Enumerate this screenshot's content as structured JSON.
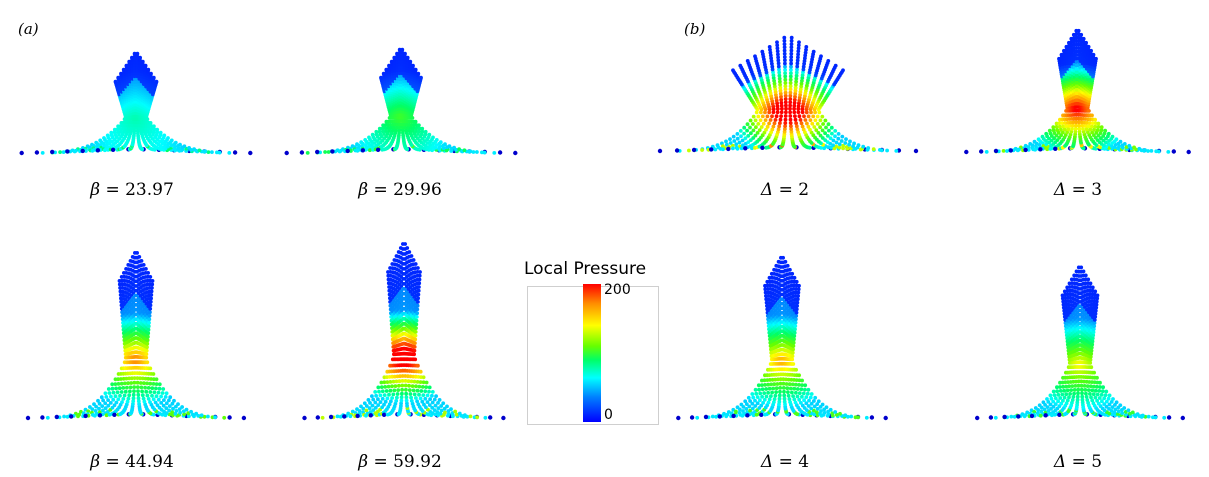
{
  "panels": {
    "a_label": "(a)",
    "b_label": "(b)"
  },
  "captions": {
    "a1": {
      "symbol": "β",
      "rest": " = 23.97"
    },
    "a2": {
      "symbol": "β",
      "rest": " = 29.96"
    },
    "a3": {
      "symbol": "β",
      "rest": " = 44.94"
    },
    "a4": {
      "symbol": "β",
      "rest": " = 59.92"
    },
    "b1": {
      "symbol": "Δ",
      "rest": " = 2"
    },
    "b2": {
      "symbol": "Δ",
      "rest": " = 3"
    },
    "b3": {
      "symbol": "Δ",
      "rest": " = 4"
    },
    "b4": {
      "symbol": "Δ",
      "rest": " = 5"
    }
  },
  "colorbar": {
    "title": "Local Pressure",
    "max_label": "200",
    "min_label": "0",
    "colors": [
      "#0000ff",
      "#0080ff",
      "#00ffff",
      "#00ff66",
      "#66ff00",
      "#ffff00",
      "#ff8c00",
      "#ff0000"
    ]
  },
  "figures": [
    {
      "id": "a1",
      "spread": 0.9,
      "height": 0.55,
      "wide_top": false,
      "hot": 0.15
    },
    {
      "id": "a2",
      "spread": 0.9,
      "height": 0.6,
      "wide_top": false,
      "hot": 0.3
    },
    {
      "id": "a3",
      "spread": 0.85,
      "height": 0.95,
      "wide_top": false,
      "hot": 0.65
    },
    {
      "id": "a4",
      "spread": 0.85,
      "height": 1.0,
      "wide_top": false,
      "hot": 0.95
    },
    {
      "id": "b1",
      "spread": 1.0,
      "height": 0.7,
      "wide_top": true,
      "hot": 1.0
    },
    {
      "id": "b2",
      "spread": 0.9,
      "height": 0.75,
      "wide_top": false,
      "hot": 0.8
    },
    {
      "id": "b3",
      "spread": 0.85,
      "height": 0.9,
      "wide_top": false,
      "hot": 0.6
    },
    {
      "id": "b4",
      "spread": 0.85,
      "height": 0.85,
      "wide_top": false,
      "hot": 0.5
    }
  ]
}
